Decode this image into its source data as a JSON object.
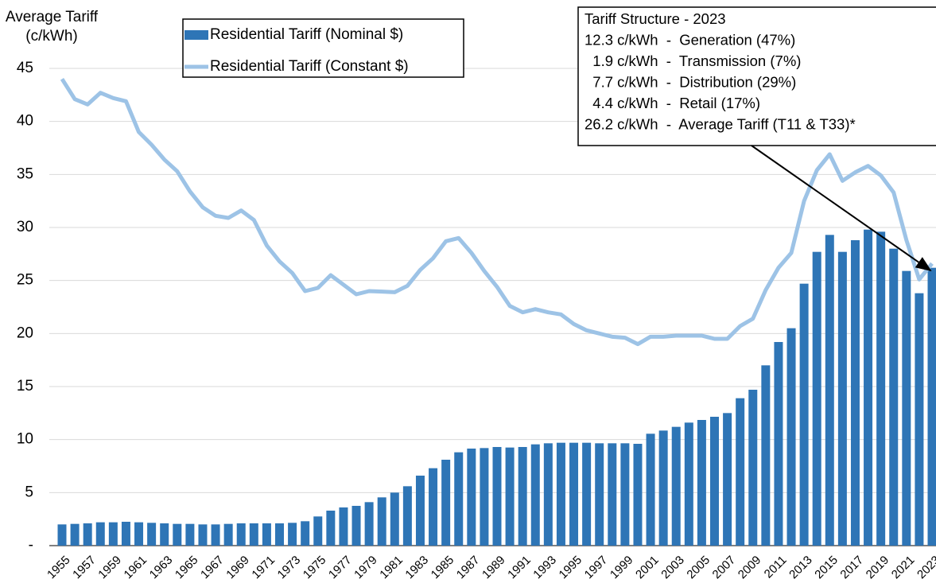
{
  "chart_data": {
    "type": "combo",
    "y_label": [
      "Average Tariff",
      "(c/kWh)"
    ],
    "categories": [
      "1955",
      null,
      "1957",
      null,
      "1959",
      null,
      "1961",
      null,
      "1963",
      null,
      "1965",
      null,
      "1967",
      null,
      "1969",
      null,
      "1971",
      null,
      "1973",
      null,
      "1975",
      null,
      "1977",
      null,
      "1979",
      null,
      "1981",
      null,
      "1983",
      null,
      "1985",
      null,
      "1987",
      null,
      "1989",
      null,
      "1991",
      null,
      "1993",
      null,
      "1995",
      null,
      "1997",
      null,
      "1999",
      null,
      "2001",
      null,
      "2003",
      null,
      "2005",
      null,
      "2007",
      null,
      "2009",
      null,
      "2011",
      null,
      "2013",
      null,
      "2015",
      null,
      "2017",
      null,
      "2019",
      null,
      "2021",
      null,
      "2023"
    ],
    "series": [
      {
        "name": "Residential Tariff (Nominal $)",
        "kind": "bar",
        "color": "#2e75b6",
        "values": [
          2.0,
          2.05,
          2.1,
          2.2,
          2.2,
          2.25,
          2.2,
          2.15,
          2.1,
          2.05,
          2.05,
          2.0,
          2.0,
          2.05,
          2.1,
          2.1,
          2.1,
          2.1,
          2.15,
          2.3,
          2.75,
          3.3,
          3.6,
          3.75,
          4.1,
          4.55,
          5.0,
          5.6,
          6.6,
          7.3,
          8.1,
          8.8,
          9.15,
          9.2,
          9.3,
          9.25,
          9.3,
          9.55,
          9.65,
          9.7,
          9.7,
          9.7,
          9.65,
          9.65,
          9.65,
          9.6,
          10.55,
          10.85,
          11.2,
          11.6,
          11.85,
          12.15,
          12.5,
          13.9,
          14.7,
          17.0,
          19.2,
          20.5,
          24.7,
          27.7,
          29.3,
          27.7,
          28.8,
          29.8,
          29.6,
          28.0,
          25.9,
          23.8,
          26.2
        ]
      },
      {
        "name": "Residential Tariff (Constant $)",
        "kind": "line",
        "color": "#9dc3e6",
        "values": [
          44.0,
          42.1,
          41.6,
          42.7,
          42.2,
          41.9,
          39.0,
          37.8,
          36.4,
          35.3,
          33.4,
          31.9,
          31.1,
          30.9,
          31.6,
          30.7,
          28.3,
          26.8,
          25.7,
          24.0,
          24.3,
          25.5,
          24.6,
          23.7,
          24.0,
          23.95,
          23.9,
          24.5,
          26.0,
          27.1,
          28.7,
          29.0,
          27.6,
          25.9,
          24.4,
          22.6,
          22.0,
          22.3,
          22.0,
          21.8,
          20.9,
          20.3,
          20.0,
          19.7,
          19.6,
          19.0,
          19.7,
          19.7,
          19.8,
          19.8,
          19.8,
          19.5,
          19.5,
          20.7,
          21.4,
          24.1,
          26.2,
          27.6,
          32.5,
          35.4,
          36.9,
          34.4,
          35.2,
          35.8,
          34.9,
          33.3,
          28.8,
          25.1,
          26.6
        ]
      }
    ],
    "ylim": [
      0,
      45
    ],
    "yticks": [
      {
        "value": 0,
        "label": "-"
      },
      5,
      10,
      15,
      20,
      25,
      30,
      35,
      40,
      45
    ],
    "grid": true,
    "annotation": [
      "Tariff Structure - 2023",
      "12.3 c/kWh  -  Generation (47%)",
      "  1.9 c/kWh  -  Transmission (7%)",
      "  7.7 c/kWh  -  Distribution (29%)",
      "  4.4 c/kWh  -  Retail (17%)",
      "26.2 c/kWh  -  Average Tariff (T11 & T33)*"
    ]
  }
}
